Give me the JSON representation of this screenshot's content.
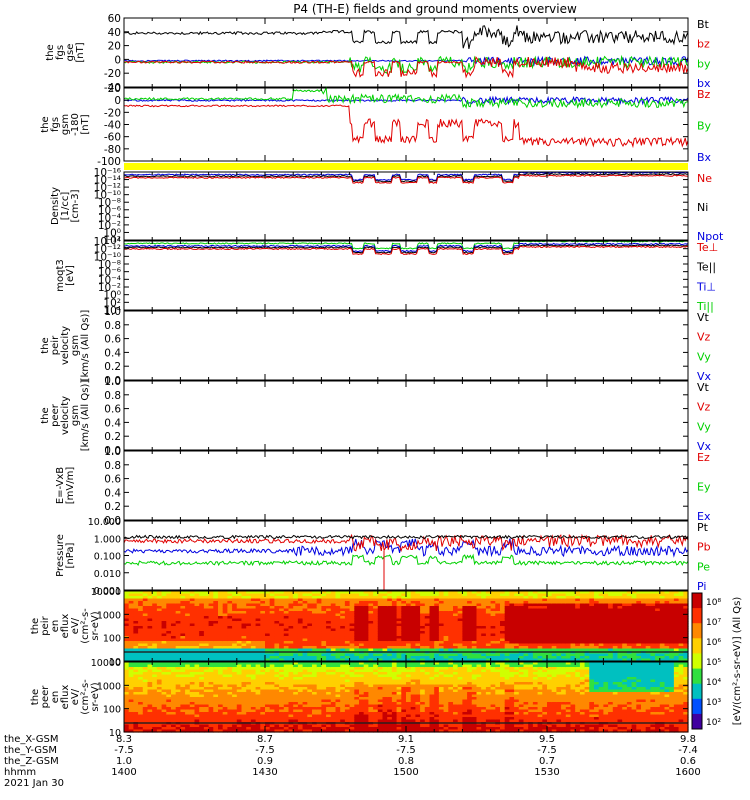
{
  "title": "P4 (TH-E) fields and ground moments overview",
  "colors": {
    "black": "#000000",
    "red": "#e00000",
    "green": "#00d000",
    "blue": "#0000e0",
    "yellow": "#ffff00"
  },
  "chart_data": [
    {
      "type": "line",
      "id": "fgs",
      "ylabel": [
        "the",
        "fgs",
        "gse",
        "[nT]"
      ],
      "ylim": [
        -40,
        60
      ],
      "yticks": [
        "60",
        "40",
        "20",
        "0",
        "-20",
        "-40"
      ],
      "legend": [
        {
          "label": "Bt",
          "color": "black"
        },
        {
          "label": "bz",
          "color": "red"
        },
        {
          "label": "by",
          "color": "green"
        },
        {
          "label": "bx",
          "color": "blue"
        }
      ]
    },
    {
      "type": "line",
      "id": "fgs_gsm",
      "ylabel": [
        "the",
        "fgs",
        "gsm",
        "-180",
        "[nT]"
      ],
      "ylim": [
        -110,
        25
      ],
      "yticks": [
        "20",
        "0",
        "-20",
        "-40",
        "-60",
        "-80",
        "-100"
      ],
      "legend": [
        {
          "label": "Bz",
          "color": "red"
        },
        {
          "label": "By",
          "color": "green"
        },
        {
          "label": "Bx",
          "color": "blue"
        }
      ]
    },
    {
      "type": "line",
      "id": "density",
      "scale": "log",
      "ylabel": [
        "Density",
        "[1/cc]",
        "[cm-3]"
      ],
      "yticks": [
        "10⁻¹⁶",
        "10⁻¹⁴",
        "10⁻¹²",
        "10⁻¹⁰",
        "10⁻⁸",
        "10⁻⁶",
        "10⁻⁴",
        "10⁻²",
        "10⁰",
        "10²"
      ],
      "legend": [
        {
          "label": "Ne",
          "color": "red"
        },
        {
          "label": "Ni",
          "color": "black"
        },
        {
          "label": "Npot",
          "color": "blue"
        }
      ]
    },
    {
      "type": "line",
      "id": "temp",
      "scale": "log",
      "ylabel": [
        "moqt3",
        "[eV]"
      ],
      "yticks": [
        "10⁻¹⁴",
        "10⁻¹²",
        "10⁻¹⁰",
        "10⁻⁸",
        "10⁻⁶",
        "10⁻⁴",
        "10⁻²",
        "10⁰",
        "10²",
        "10⁴"
      ],
      "legend": [
        {
          "label": "Te⊥",
          "color": "red"
        },
        {
          "label": "Te||",
          "color": "black"
        },
        {
          "label": "Ti⊥",
          "color": "blue"
        },
        {
          "label": "Ti||",
          "color": "green"
        }
      ]
    },
    {
      "type": "line",
      "id": "peir_vel",
      "ylabel": [
        "the",
        "peir",
        "velocity",
        "gsm",
        "[km/s (All Qs)]"
      ],
      "ylim": [
        0.0,
        1.0
      ],
      "yticks": [
        "1.0",
        "0.8",
        "0.6",
        "0.4",
        "0.2",
        "0.0"
      ],
      "legend": [
        {
          "label": "Vt",
          "color": "black"
        },
        {
          "label": "Vz",
          "color": "red"
        },
        {
          "label": "Vy",
          "color": "green"
        },
        {
          "label": "Vx",
          "color": "blue"
        }
      ]
    },
    {
      "type": "line",
      "id": "peer_vel",
      "ylabel": [
        "the",
        "peer",
        "velocity",
        "gsm",
        "[km/s (All Qs)]"
      ],
      "ylim": [
        0.0,
        1.0
      ],
      "yticks": [
        "1.0",
        "0.8",
        "0.6",
        "0.4",
        "0.2",
        "0.0"
      ],
      "legend": [
        {
          "label": "Vt",
          "color": "black"
        },
        {
          "label": "Vz",
          "color": "red"
        },
        {
          "label": "Vy",
          "color": "green"
        },
        {
          "label": "Vx",
          "color": "blue"
        }
      ]
    },
    {
      "type": "line",
      "id": "efield",
      "ylabel": [
        "E=-VxB",
        "[mV/m]"
      ],
      "ylim": [
        0.0,
        1.0
      ],
      "yticks": [
        "1.0",
        "0.8",
        "0.6",
        "0.4",
        "0.2",
        "0.0"
      ],
      "legend": [
        {
          "label": "Ez",
          "color": "red"
        },
        {
          "label": "Ey",
          "color": "green"
        },
        {
          "label": "Ex",
          "color": "blue"
        }
      ]
    },
    {
      "type": "line",
      "id": "pressure",
      "scale": "log",
      "ylabel": [
        "Pressure",
        "[nPa]"
      ],
      "yticks": [
        "10.000",
        "1.000",
        "0.100",
        "0.010",
        "0.001"
      ],
      "legend": [
        {
          "label": "Pt",
          "color": "black"
        },
        {
          "label": "Pb",
          "color": "red"
        },
        {
          "label": "Pe",
          "color": "green"
        },
        {
          "label": "Pi",
          "color": "blue"
        }
      ]
    },
    {
      "type": "heatmap",
      "id": "peir_en",
      "ylabel": [
        "the",
        "peir",
        "en",
        "eflux",
        "eV/",
        "(cm²-s-",
        "sr-eV)"
      ],
      "yticks": [
        "10000",
        "1000",
        "100",
        "10"
      ]
    },
    {
      "type": "heatmap",
      "id": "peer_en",
      "ylabel": [
        "the",
        "peer",
        "en",
        "eflux",
        "eV/",
        "(cm²-s-",
        "sr-eV)"
      ],
      "yticks": [
        "10000",
        "1000",
        "100",
        "10"
      ]
    }
  ],
  "colorbar": {
    "ticks": [
      "10⁸",
      "10⁷",
      "10⁶",
      "10⁵",
      "10⁴",
      "10³",
      "10²"
    ],
    "label": "[eV/(cm²-s-sr-eV)] (All Qs)"
  },
  "xaxis": {
    "row_labels": [
      "the_X-GSM",
      "the_Y-GSM",
      "the_Z-GSM",
      "hhmm",
      "2021 Jan 30"
    ],
    "ticks": [
      {
        "x": "8.3",
        "y": "-7.5",
        "z": "1.0",
        "t": "1400"
      },
      {
        "x": "8.7",
        "y": "-7.5",
        "z": "0.9",
        "t": "1430"
      },
      {
        "x": "9.1",
        "y": "-7.5",
        "z": "0.8",
        "t": "1500"
      },
      {
        "x": "9.5",
        "y": "-7.5",
        "z": "0.7",
        "t": "1530"
      },
      {
        "x": "9.8",
        "y": "-7.4",
        "z": "0.6",
        "t": "1600"
      }
    ]
  }
}
